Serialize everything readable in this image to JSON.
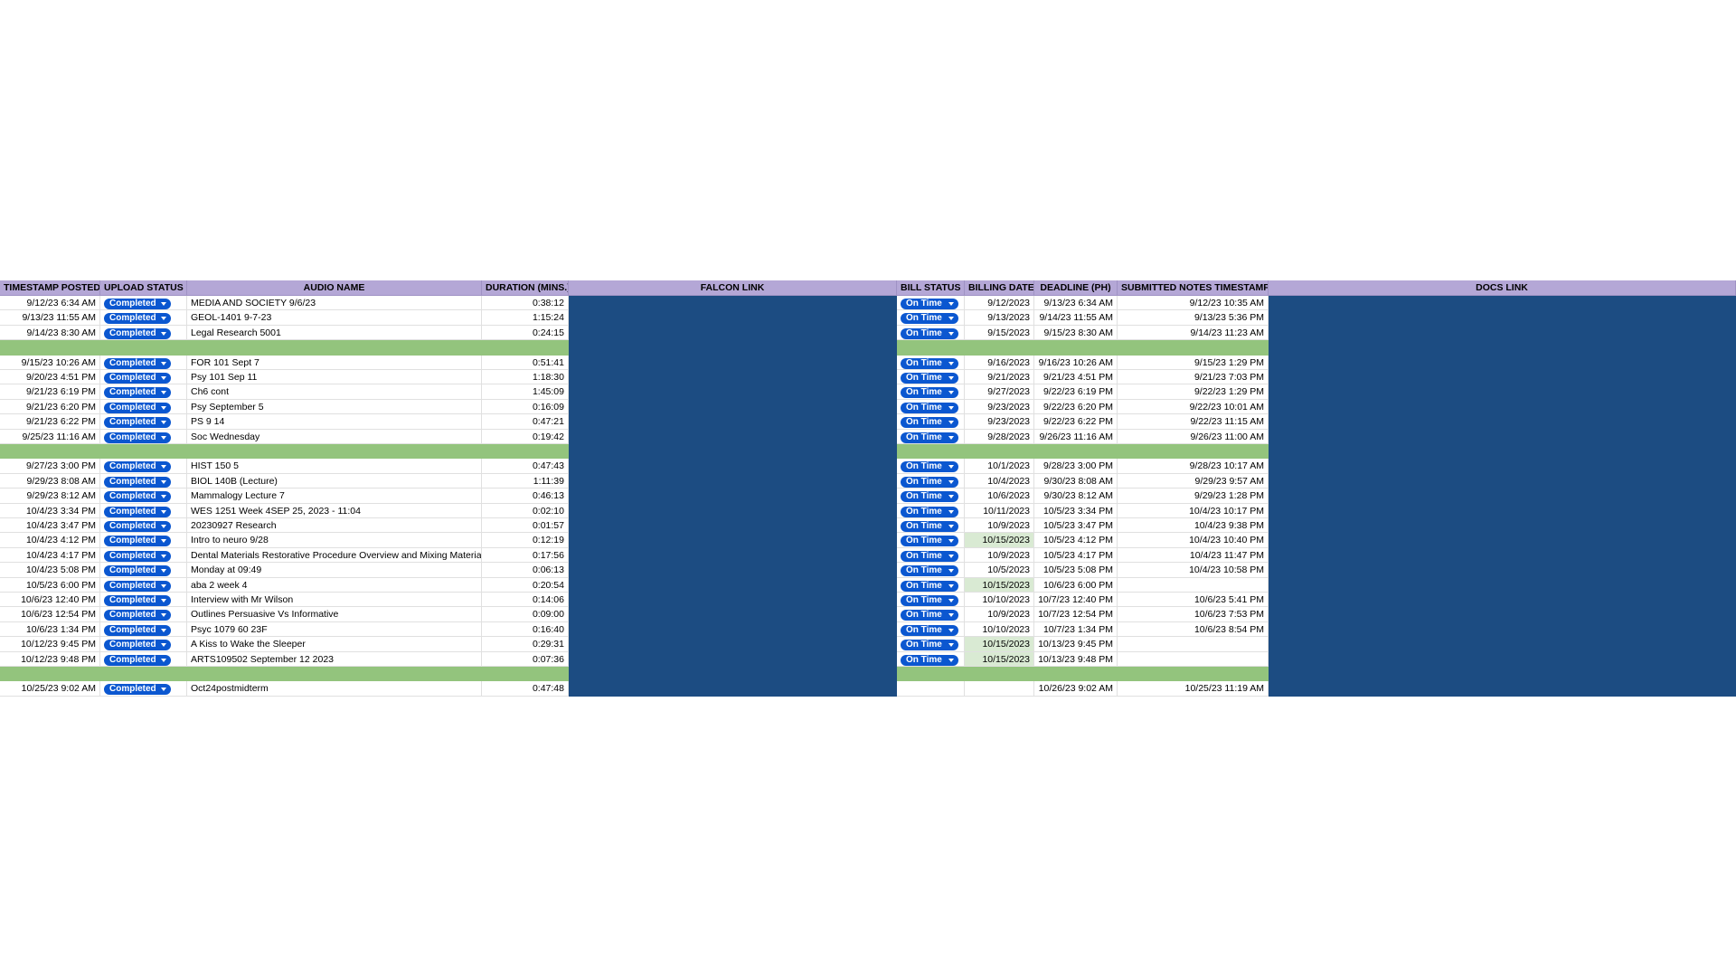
{
  "table": {
    "columns": [
      "TIMESTAMP POSTED",
      "UPLOAD STATUS",
      "AUDIO NAME",
      "DURATION (MINS.)",
      "FALCON LINK",
      "BILL STATUS",
      "BILLING DATE",
      "DEADLINE (PH)",
      "SUBMITTED NOTES TIMESTAMP",
      "DOCS LINK"
    ],
    "groups": [
      {
        "rows": [
          {
            "timestamp": "9/12/23 6:34 AM",
            "upload_status": "Completed",
            "audio_name": "MEDIA AND SOCIETY 9/6/23",
            "duration": "0:38:12",
            "bill_status": "On Time",
            "billing_date": "9/12/2023",
            "deadline": "9/13/23 6:34 AM",
            "submitted": "9/12/23 10:35 AM"
          },
          {
            "timestamp": "9/13/23 11:55 AM",
            "upload_status": "Completed",
            "audio_name": "GEOL-1401 9-7-23",
            "duration": "1:15:24",
            "bill_status": "On Time",
            "billing_date": "9/13/2023",
            "deadline": "9/14/23 11:55 AM",
            "submitted": "9/13/23 5:36 PM"
          },
          {
            "timestamp": "9/14/23 8:30 AM",
            "upload_status": "Completed",
            "audio_name": "Legal Research 5001",
            "duration": "0:24:15",
            "bill_status": "On Time",
            "billing_date": "9/15/2023",
            "deadline": "9/15/23 8:30 AM",
            "submitted": "9/14/23 11:23 AM"
          }
        ]
      },
      {
        "rows": [
          {
            "timestamp": "9/15/23 10:26 AM",
            "upload_status": "Completed",
            "audio_name": "FOR 101 Sept 7",
            "duration": "0:51:41",
            "bill_status": "On Time",
            "billing_date": "9/16/2023",
            "deadline": "9/16/23 10:26 AM",
            "submitted": "9/15/23 1:29 PM"
          },
          {
            "timestamp": "9/20/23 4:51 PM",
            "upload_status": "Completed",
            "audio_name": "Psy 101 Sep 11",
            "duration": "1:18:30",
            "bill_status": "On Time",
            "billing_date": "9/21/2023",
            "deadline": "9/21/23 4:51 PM",
            "submitted": "9/21/23 7:03 PM"
          },
          {
            "timestamp": "9/21/23 6:19 PM",
            "upload_status": "Completed",
            "audio_name": "Ch6 cont",
            "duration": "1:45:09",
            "bill_status": "On Time",
            "billing_date": "9/27/2023",
            "deadline": "9/22/23 6:19 PM",
            "submitted": "9/22/23 1:29 PM"
          },
          {
            "timestamp": "9/21/23 6:20 PM",
            "upload_status": "Completed",
            "audio_name": "Psy September 5",
            "duration": "0:16:09",
            "bill_status": "On Time",
            "billing_date": "9/23/2023",
            "deadline": "9/22/23 6:20 PM",
            "submitted": "9/22/23 10:01 AM"
          },
          {
            "timestamp": "9/21/23 6:22 PM",
            "upload_status": "Completed",
            "audio_name": "PS 9 14",
            "duration": "0:47:21",
            "bill_status": "On Time",
            "billing_date": "9/23/2023",
            "deadline": "9/22/23 6:22 PM",
            "submitted": "9/22/23 11:15 AM"
          },
          {
            "timestamp": "9/25/23 11:16 AM",
            "upload_status": "Completed",
            "audio_name": "Soc Wednesday",
            "duration": "0:19:42",
            "bill_status": "On Time",
            "billing_date": "9/28/2023",
            "deadline": "9/26/23 11:16 AM",
            "submitted": "9/26/23 11:00 AM"
          }
        ]
      },
      {
        "rows": [
          {
            "timestamp": "9/27/23 3:00 PM",
            "upload_status": "Completed",
            "audio_name": "HIST 150 5",
            "duration": "0:47:43",
            "bill_status": "On Time",
            "billing_date": "10/1/2023",
            "deadline": "9/28/23 3:00 PM",
            "submitted": "9/28/23 10:17 AM"
          },
          {
            "timestamp": "9/29/23 8:08 AM",
            "upload_status": "Completed",
            "audio_name": "BIOL 140B (Lecture)",
            "duration": "1:11:39",
            "bill_status": "On Time",
            "billing_date": "10/4/2023",
            "deadline": "9/30/23 8:08 AM",
            "submitted": "9/29/23 9:57 AM"
          },
          {
            "timestamp": "9/29/23 8:12 AM",
            "upload_status": "Completed",
            "audio_name": "Mammalogy Lecture 7",
            "duration": "0:46:13",
            "bill_status": "On Time",
            "billing_date": "10/6/2023",
            "deadline": "9/30/23 8:12 AM",
            "submitted": "9/29/23 1:28 PM"
          },
          {
            "timestamp": "10/4/23 3:34 PM",
            "upload_status": "Completed",
            "audio_name": "WES 1251 Week 4SEP 25, 2023 - 11:04",
            "duration": "0:02:10",
            "bill_status": "On Time",
            "billing_date": "10/11/2023",
            "deadline": "10/5/23 3:34 PM",
            "submitted": "10/4/23 10:17 PM"
          },
          {
            "timestamp": "10/4/23 3:47 PM",
            "upload_status": "Completed",
            "audio_name": "20230927 Research",
            "duration": "0:01:57",
            "bill_status": "On Time",
            "billing_date": "10/9/2023",
            "deadline": "10/5/23 3:47 PM",
            "submitted": "10/4/23 9:38 PM"
          },
          {
            "timestamp": "10/4/23 4:12 PM",
            "upload_status": "Completed",
            "audio_name": "Intro to neuro 9/28",
            "duration": "0:12:19",
            "bill_status": "On Time",
            "billing_date": "10/15/2023",
            "billing_date_highlight": true,
            "deadline": "10/5/23 4:12 PM",
            "submitted": "10/4/23 10:40 PM"
          },
          {
            "timestamp": "10/4/23 4:17 PM",
            "upload_status": "Completed",
            "audio_name": "Dental Materials Restorative Procedure Overview and Mixing Materials",
            "duration": "0:17:56",
            "bill_status": "On Time",
            "billing_date": "10/9/2023",
            "deadline": "10/5/23 4:17 PM",
            "submitted": "10/4/23 11:47 PM"
          },
          {
            "timestamp": "10/4/23 5:08 PM",
            "upload_status": "Completed",
            "audio_name": "Monday at 09:49",
            "duration": "0:06:13",
            "bill_status": "On Time",
            "billing_date": "10/5/2023",
            "deadline": "10/5/23 5:08 PM",
            "submitted": "10/4/23 10:58 PM"
          },
          {
            "timestamp": "10/5/23 6:00 PM",
            "upload_status": "Completed",
            "audio_name": "aba 2 week 4",
            "duration": "0:20:54",
            "bill_status": "On Time",
            "billing_date": "10/15/2023",
            "billing_date_highlight": true,
            "deadline": "10/6/23 6:00 PM"
          },
          {
            "timestamp": "10/6/23 12:40 PM",
            "upload_status": "Completed",
            "audio_name": "Interview with Mr Wilson",
            "duration": "0:14:06",
            "bill_status": "On Time",
            "billing_date": "10/10/2023",
            "deadline": "10/7/23 12:40 PM",
            "submitted": "10/6/23 5:41 PM"
          },
          {
            "timestamp": "10/6/23 12:54 PM",
            "upload_status": "Completed",
            "audio_name": "Outlines Persuasive Vs Informative",
            "duration": "0:09:00",
            "bill_status": "On Time",
            "billing_date": "10/9/2023",
            "deadline": "10/7/23 12:54 PM",
            "submitted": "10/6/23 7:53 PM"
          },
          {
            "timestamp": "10/6/23 1:34 PM",
            "upload_status": "Completed",
            "audio_name": "Psyc 1079 60 23F",
            "duration": "0:16:40",
            "bill_status": "On Time",
            "billing_date": "10/10/2023",
            "deadline": "10/7/23 1:34 PM",
            "submitted": "10/6/23 8:54 PM"
          },
          {
            "timestamp": "10/12/23 9:45 PM",
            "upload_status": "Completed",
            "audio_name": "A Kiss to Wake the Sleeper",
            "duration": "0:29:31",
            "bill_status": "On Time",
            "billing_date": "10/15/2023",
            "billing_date_highlight": true,
            "deadline": "10/13/23 9:45 PM"
          },
          {
            "timestamp": "10/12/23 9:48 PM",
            "upload_status": "Completed",
            "audio_name": "ARTS109502 September 12 2023",
            "duration": "0:07:36",
            "bill_status": "On Time",
            "billing_date": "10/15/2023",
            "billing_date_highlight": true,
            "deadline": "10/13/23 9:48 PM"
          }
        ]
      },
      {
        "rows": [
          {
            "timestamp": "10/25/23 9:02 AM",
            "upload_status": "Completed",
            "audio_name": "Oct24postmidterm",
            "duration": "0:47:48",
            "deadline": "10/26/23 9:02 AM",
            "submitted": "10/25/23 11:19 AM"
          }
        ]
      }
    ]
  }
}
